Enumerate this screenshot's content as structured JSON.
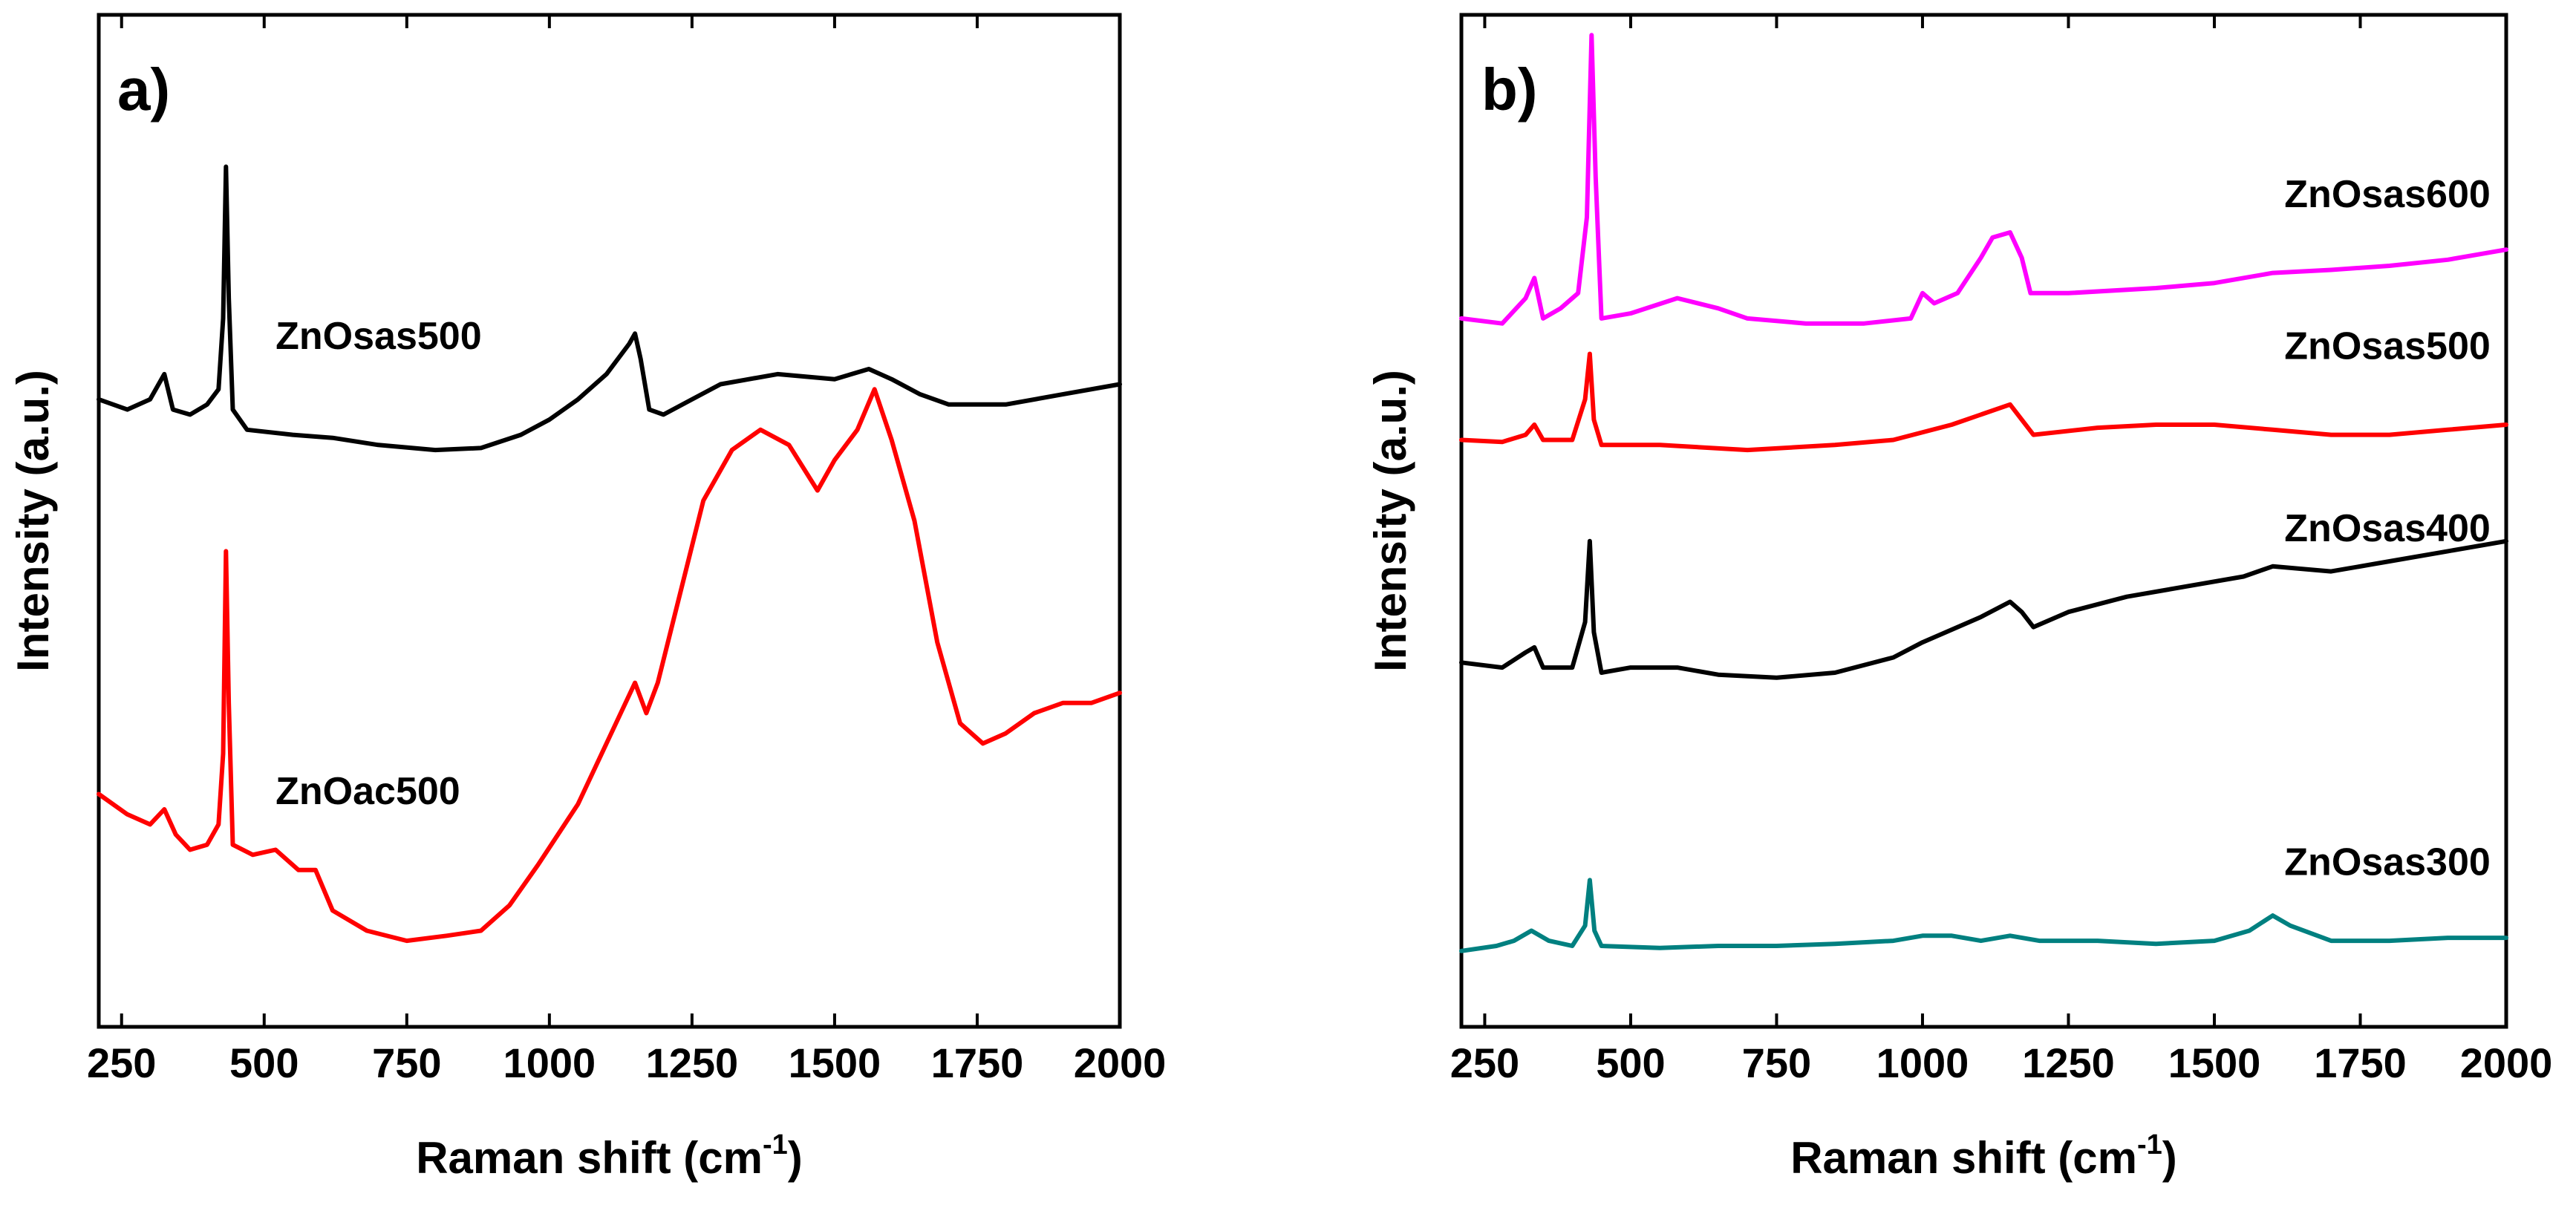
{
  "chart_data": [
    {
      "type": "line",
      "panel_label": "a)",
      "xlabel_main": "Raman shift (cm",
      "xlabel_sup": "-1",
      "xlabel_tail": ")",
      "ylabel": "Intensity (a.u.)",
      "xlim": [
        210,
        2000
      ],
      "ylim": [
        0,
        100
      ],
      "y_ticks_shown": false,
      "x_ticks": [
        250,
        500,
        750,
        1000,
        1250,
        1500,
        1750,
        2000
      ],
      "x_tick_labels": [
        "250",
        "500",
        "750",
        "1000",
        "1250",
        "1500",
        "1750",
        "2000"
      ],
      "series": [
        {
          "name": "ZnOsas500",
          "label": "ZnOsas500",
          "color": "#000000",
          "label_at": [
            520,
            67
          ],
          "points": [
            [
              210,
              62
            ],
            [
              260,
              61
            ],
            [
              300,
              62
            ],
            [
              325,
              64.5
            ],
            [
              340,
              61
            ],
            [
              370,
              60.5
            ],
            [
              400,
              61.5
            ],
            [
              420,
              63
            ],
            [
              428,
              70
            ],
            [
              433,
              85
            ],
            [
              438,
              72
            ],
            [
              445,
              61
            ],
            [
              470,
              59
            ],
            [
              550,
              58.5
            ],
            [
              620,
              58.2
            ],
            [
              700,
              57.5
            ],
            [
              800,
              57
            ],
            [
              880,
              57.2
            ],
            [
              950,
              58.5
            ],
            [
              1000,
              60
            ],
            [
              1050,
              62
            ],
            [
              1100,
              64.5
            ],
            [
              1140,
              67.5
            ],
            [
              1150,
              68.5
            ],
            [
              1160,
              66
            ],
            [
              1175,
              61
            ],
            [
              1200,
              60.5
            ],
            [
              1250,
              62
            ],
            [
              1300,
              63.5
            ],
            [
              1400,
              64.5
            ],
            [
              1500,
              64
            ],
            [
              1560,
              65
            ],
            [
              1600,
              64
            ],
            [
              1650,
              62.5
            ],
            [
              1700,
              61.5
            ],
            [
              1800,
              61.5
            ],
            [
              1900,
              62.5
            ],
            [
              2000,
              63.5
            ]
          ]
        },
        {
          "name": "ZnOac500",
          "label": "ZnOac500",
          "color": "#ff0000",
          "label_at": [
            520,
            22
          ],
          "points": [
            [
              210,
              23
            ],
            [
              260,
              21
            ],
            [
              300,
              20
            ],
            [
              325,
              21.5
            ],
            [
              345,
              19
            ],
            [
              370,
              17.5
            ],
            [
              400,
              18
            ],
            [
              420,
              20
            ],
            [
              428,
              27
            ],
            [
              433,
              47
            ],
            [
              438,
              32
            ],
            [
              445,
              18
            ],
            [
              480,
              17
            ],
            [
              520,
              17.5
            ],
            [
              560,
              15.5
            ],
            [
              590,
              15.5
            ],
            [
              620,
              11.5
            ],
            [
              680,
              9.5
            ],
            [
              750,
              8.5
            ],
            [
              820,
              9
            ],
            [
              880,
              9.5
            ],
            [
              930,
              12
            ],
            [
              980,
              16
            ],
            [
              1050,
              22
            ],
            [
              1100,
              28
            ],
            [
              1150,
              34
            ],
            [
              1170,
              31
            ],
            [
              1190,
              34
            ],
            [
              1230,
              43
            ],
            [
              1270,
              52
            ],
            [
              1320,
              57
            ],
            [
              1370,
              59
            ],
            [
              1420,
              57.5
            ],
            [
              1470,
              53
            ],
            [
              1500,
              56
            ],
            [
              1540,
              59
            ],
            [
              1570,
              63
            ],
            [
              1600,
              58
            ],
            [
              1640,
              50
            ],
            [
              1680,
              38
            ],
            [
              1720,
              30
            ],
            [
              1760,
              28
            ],
            [
              1800,
              29
            ],
            [
              1850,
              31
            ],
            [
              1900,
              32
            ],
            [
              1950,
              32
            ],
            [
              2000,
              33
            ]
          ]
        }
      ]
    },
    {
      "type": "line",
      "panel_label": "b)",
      "xlabel_main": "Raman shift (cm",
      "xlabel_sup": "-1",
      "xlabel_tail": ")",
      "ylabel": "Intensity (a.u.)",
      "xlim": [
        210,
        2000
      ],
      "ylim": [
        0,
        100
      ],
      "y_ticks_shown": false,
      "x_ticks": [
        250,
        500,
        750,
        1000,
        1250,
        1500,
        1750,
        2000
      ],
      "x_tick_labels": [
        "250",
        "500",
        "750",
        "1000",
        "1250",
        "1500",
        "1750",
        "2000"
      ],
      "series": [
        {
          "name": "ZnOsas600",
          "label": "ZnOsas600",
          "color": "#ff00ff",
          "label_at": [
            1620,
            81
          ],
          "points": [
            [
              210,
              70
            ],
            [
              280,
              69.5
            ],
            [
              320,
              72
            ],
            [
              335,
              74
            ],
            [
              350,
              70
            ],
            [
              380,
              71
            ],
            [
              410,
              72.5
            ],
            [
              425,
              80
            ],
            [
              433,
              98
            ],
            [
              440,
              84
            ],
            [
              450,
              70
            ],
            [
              500,
              70.5
            ],
            [
              580,
              72
            ],
            [
              650,
              71
            ],
            [
              700,
              70
            ],
            [
              800,
              69.5
            ],
            [
              900,
              69.5
            ],
            [
              980,
              70
            ],
            [
              1000,
              72.5
            ],
            [
              1020,
              71.5
            ],
            [
              1060,
              72.5
            ],
            [
              1100,
              76
            ],
            [
              1120,
              78
            ],
            [
              1150,
              78.5
            ],
            [
              1170,
              76
            ],
            [
              1185,
              72.5
            ],
            [
              1250,
              72.5
            ],
            [
              1400,
              73
            ],
            [
              1500,
              73.5
            ],
            [
              1600,
              74.5
            ],
            [
              1700,
              74.8
            ],
            [
              1800,
              75.2
            ],
            [
              1900,
              75.8
            ],
            [
              2000,
              76.8
            ]
          ]
        },
        {
          "name": "ZnOsas500",
          "label": "ZnOsas500",
          "color": "#ff0000",
          "label_at": [
            1620,
            66
          ],
          "points": [
            [
              210,
              58
            ],
            [
              280,
              57.8
            ],
            [
              320,
              58.5
            ],
            [
              335,
              59.5
            ],
            [
              350,
              58
            ],
            [
              400,
              58
            ],
            [
              422,
              62
            ],
            [
              430,
              66.5
            ],
            [
              437,
              60
            ],
            [
              450,
              57.5
            ],
            [
              550,
              57.5
            ],
            [
              700,
              57
            ],
            [
              850,
              57.5
            ],
            [
              950,
              58
            ],
            [
              1050,
              59.5
            ],
            [
              1100,
              60.5
            ],
            [
              1150,
              61.5
            ],
            [
              1170,
              60
            ],
            [
              1190,
              58.5
            ],
            [
              1300,
              59.2
            ],
            [
              1400,
              59.5
            ],
            [
              1500,
              59.5
            ],
            [
              1600,
              59
            ],
            [
              1700,
              58.5
            ],
            [
              1800,
              58.5
            ],
            [
              1900,
              59
            ],
            [
              2000,
              59.5
            ]
          ]
        },
        {
          "name": "ZnOsas400",
          "label": "ZnOsas400",
          "color": "#000000",
          "label_at": [
            1620,
            48
          ],
          "points": [
            [
              210,
              36
            ],
            [
              280,
              35.5
            ],
            [
              320,
              37
            ],
            [
              335,
              37.5
            ],
            [
              350,
              35.5
            ],
            [
              400,
              35.5
            ],
            [
              422,
              40
            ],
            [
              430,
              48
            ],
            [
              437,
              39
            ],
            [
              450,
              35
            ],
            [
              500,
              35.5
            ],
            [
              580,
              35.5
            ],
            [
              650,
              34.8
            ],
            [
              750,
              34.5
            ],
            [
              850,
              35
            ],
            [
              950,
              36.5
            ],
            [
              1000,
              38
            ],
            [
              1100,
              40.5
            ],
            [
              1150,
              42
            ],
            [
              1170,
              41
            ],
            [
              1190,
              39.5
            ],
            [
              1250,
              41
            ],
            [
              1350,
              42.5
            ],
            [
              1450,
              43.5
            ],
            [
              1550,
              44.5
            ],
            [
              1600,
              45.5
            ],
            [
              1700,
              45
            ],
            [
              1800,
              46
            ],
            [
              1900,
              47
            ],
            [
              2000,
              48
            ]
          ]
        },
        {
          "name": "ZnOsas300",
          "label": "ZnOsas300",
          "color": "#008080",
          "label_at": [
            1620,
            15
          ],
          "points": [
            [
              210,
              7.5
            ],
            [
              270,
              8
            ],
            [
              300,
              8.5
            ],
            [
              330,
              9.5
            ],
            [
              360,
              8.5
            ],
            [
              400,
              8
            ],
            [
              422,
              10
            ],
            [
              430,
              14.5
            ],
            [
              438,
              9.5
            ],
            [
              450,
              8
            ],
            [
              550,
              7.8
            ],
            [
              650,
              8
            ],
            [
              750,
              8
            ],
            [
              850,
              8.2
            ],
            [
              950,
              8.5
            ],
            [
              1000,
              9
            ],
            [
              1050,
              9
            ],
            [
              1100,
              8.5
            ],
            [
              1150,
              9
            ],
            [
              1200,
              8.5
            ],
            [
              1300,
              8.5
            ],
            [
              1400,
              8.2
            ],
            [
              1500,
              8.5
            ],
            [
              1560,
              9.5
            ],
            [
              1600,
              11
            ],
            [
              1630,
              10
            ],
            [
              1700,
              8.5
            ],
            [
              1800,
              8.5
            ],
            [
              1900,
              8.8
            ],
            [
              2000,
              8.8
            ]
          ]
        }
      ]
    }
  ]
}
